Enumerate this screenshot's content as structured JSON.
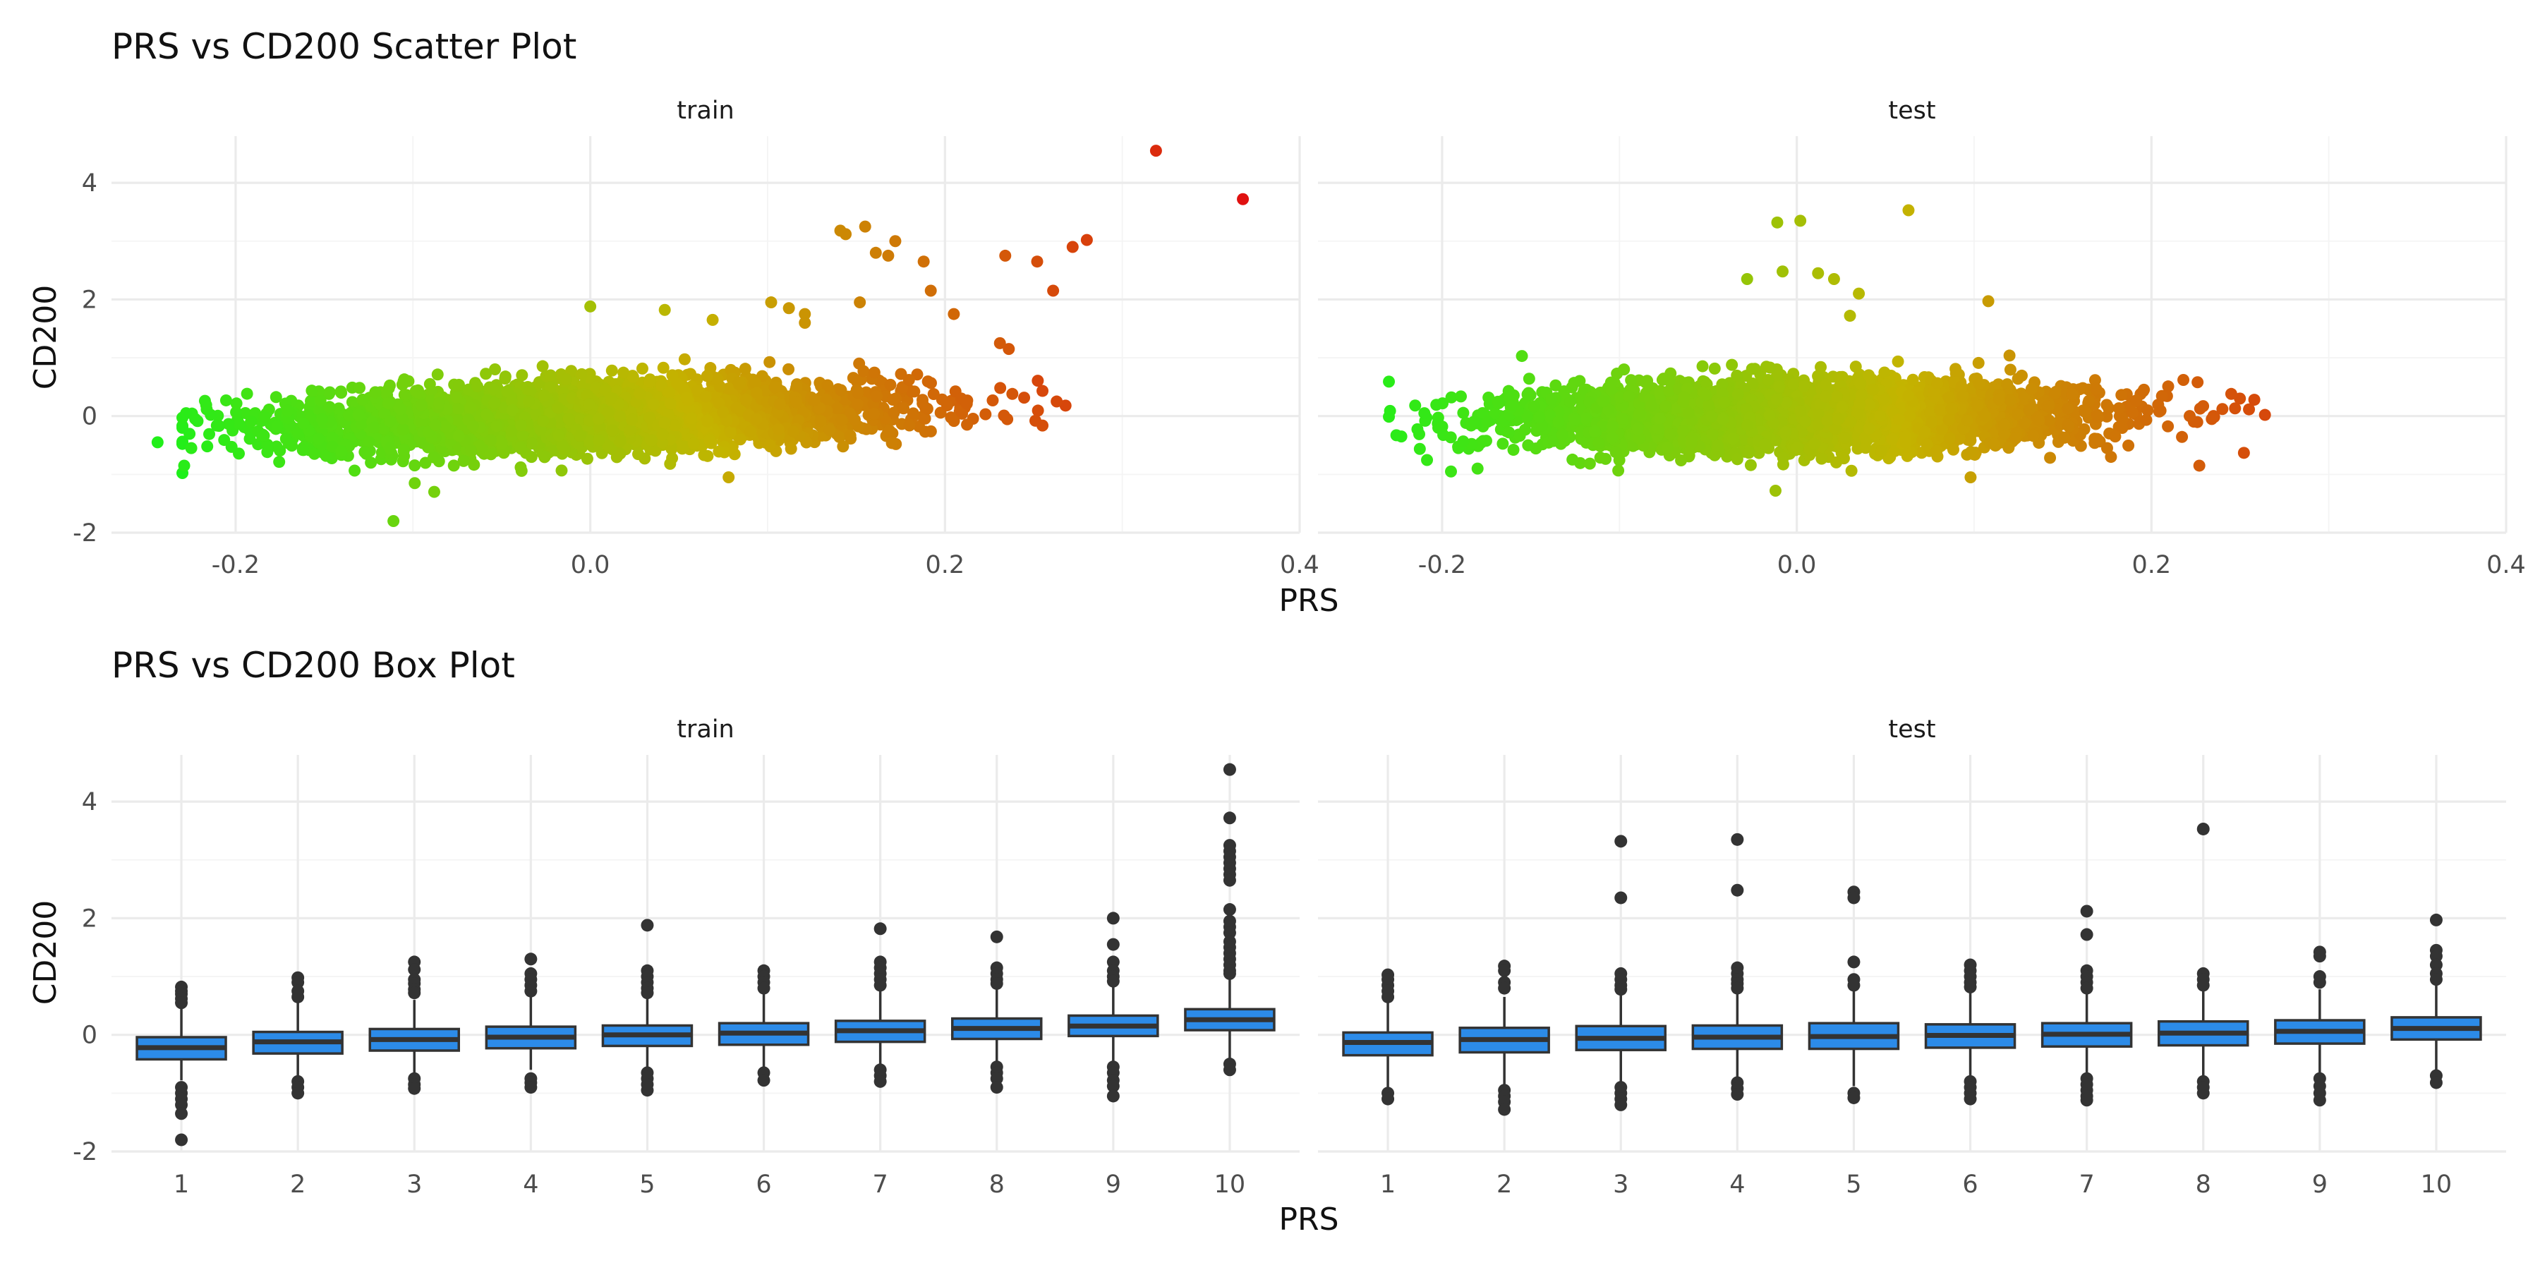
{
  "chart_data": [
    {
      "type": "scatter",
      "title": "PRS vs CD200 Scatter Plot",
      "xlabel": "PRS",
      "ylabel": "CD200",
      "facets": [
        "train",
        "test"
      ],
      "xlim": [
        -0.27,
        0.4
      ],
      "ylim": [
        -2,
        4.8
      ],
      "x_ticks": [
        "-0.2",
        "0.0",
        "0.2",
        "0.4"
      ],
      "y_ticks": [
        "-2",
        "0",
        "2",
        "4"
      ],
      "grid": true,
      "color_scale": {
        "low": "#1ef01a",
        "mid": "#c4b400",
        "high": "#e01010"
      },
      "series": [
        {
          "facet": "train",
          "cloud": {
            "n": 3800,
            "x_center": 0.0,
            "x_sd": 0.08,
            "slope": 2.4,
            "resid_sd": 0.28
          },
          "outliers": [
            {
              "x": 0.319,
              "y": 4.55
            },
            {
              "x": 0.368,
              "y": 3.72
            },
            {
              "x": 0.28,
              "y": 3.02
            },
            {
              "x": 0.272,
              "y": 2.9
            },
            {
              "x": 0.234,
              "y": 2.75
            },
            {
              "x": 0.252,
              "y": 2.65
            },
            {
              "x": 0.261,
              "y": 2.15
            },
            {
              "x": 0.155,
              "y": 3.25
            },
            {
              "x": 0.141,
              "y": 3.18
            },
            {
              "x": 0.144,
              "y": 3.12
            },
            {
              "x": 0.172,
              "y": 3.0
            },
            {
              "x": 0.161,
              "y": 2.8
            },
            {
              "x": 0.168,
              "y": 2.75
            },
            {
              "x": 0.188,
              "y": 2.65
            },
            {
              "x": 0.152,
              "y": 1.95
            },
            {
              "x": 0.192,
              "y": 2.15
            },
            {
              "x": 0.205,
              "y": 1.75
            },
            {
              "x": 0.0,
              "y": 1.88
            },
            {
              "x": 0.042,
              "y": 1.82
            },
            {
              "x": 0.102,
              "y": 1.95
            },
            {
              "x": 0.112,
              "y": 1.85
            },
            {
              "x": 0.121,
              "y": 1.75
            },
            {
              "x": 0.121,
              "y": 1.6
            },
            {
              "x": 0.069,
              "y": 1.65
            },
            {
              "x": -0.111,
              "y": -1.8
            },
            {
              "x": -0.244,
              "y": -0.45
            },
            {
              "x": -0.229,
              "y": -0.85
            },
            {
              "x": -0.225,
              "y": -0.55
            },
            {
              "x": -0.214,
              "y": 0.02
            },
            {
              "x": -0.088,
              "y": -1.3
            },
            {
              "x": -0.099,
              "y": -1.15
            },
            {
              "x": 0.078,
              "y": -1.05
            },
            {
              "x": 0.268,
              "y": 0.18
            },
            {
              "x": 0.263,
              "y": 0.25
            },
            {
              "x": 0.251,
              "y": -0.08
            },
            {
              "x": 0.238,
              "y": 0.38
            },
            {
              "x": 0.236,
              "y": 1.15
            },
            {
              "x": 0.231,
              "y": 1.25
            }
          ]
        },
        {
          "facet": "test",
          "cloud": {
            "n": 3500,
            "x_center": 0.0,
            "x_sd": 0.08,
            "slope": 1.2,
            "resid_sd": 0.28
          },
          "outliers": [
            {
              "x": -0.011,
              "y": 3.32
            },
            {
              "x": 0.002,
              "y": 3.35
            },
            {
              "x": 0.063,
              "y": 3.53
            },
            {
              "x": -0.008,
              "y": 2.48
            },
            {
              "x": -0.028,
              "y": 2.35
            },
            {
              "x": 0.012,
              "y": 2.45
            },
            {
              "x": 0.021,
              "y": 2.35
            },
            {
              "x": 0.035,
              "y": 2.1
            },
            {
              "x": 0.03,
              "y": 1.72
            },
            {
              "x": 0.108,
              "y": 1.97
            },
            {
              "x": -0.155,
              "y": 1.03
            },
            {
              "x": -0.223,
              "y": -0.35
            },
            {
              "x": -0.21,
              "y": 0.05
            },
            {
              "x": -0.195,
              "y": -0.95
            },
            {
              "x": -0.18,
              "y": -0.9
            },
            {
              "x": 0.264,
              "y": 0.02
            },
            {
              "x": 0.258,
              "y": 0.28
            },
            {
              "x": 0.245,
              "y": 0.38
            },
            {
              "x": 0.24,
              "y": 0.12
            },
            {
              "x": 0.234,
              "y": -0.05
            },
            {
              "x": 0.227,
              "y": -0.85
            },
            {
              "x": 0.226,
              "y": 0.58
            },
            {
              "x": 0.218,
              "y": 0.62
            },
            {
              "x": 0.098,
              "y": -1.05
            },
            {
              "x": -0.012,
              "y": -1.28
            },
            {
              "x": 0.175,
              "y": -0.55
            }
          ]
        }
      ]
    },
    {
      "type": "box",
      "title": "PRS vs CD200 Box Plot",
      "xlabel": "PRS",
      "ylabel": "CD200",
      "facets": [
        "train",
        "test"
      ],
      "categories": [
        "1",
        "2",
        "3",
        "4",
        "5",
        "6",
        "7",
        "8",
        "9",
        "10"
      ],
      "ylim": [
        -2,
        4.8
      ],
      "y_ticks": [
        "-2",
        "0",
        "2",
        "4"
      ],
      "grid": true,
      "box_color": "#2c8be8",
      "series": [
        {
          "facet": "train",
          "boxes": [
            {
              "q1": -0.42,
              "median": -0.22,
              "q3": -0.04,
              "low": -0.78,
              "high": 0.5,
              "out": [
                0.82,
                0.75,
                0.7,
                0.62,
                0.55,
                -0.9,
                -1.0,
                -1.1,
                -1.2,
                -1.35,
                -1.8
              ]
            },
            {
              "q1": -0.32,
              "median": -0.12,
              "q3": 0.05,
              "low": -0.7,
              "high": 0.55,
              "out": [
                0.98,
                0.9,
                0.75,
                0.65,
                -0.8,
                -0.9,
                -1.0
              ]
            },
            {
              "q1": -0.27,
              "median": -0.08,
              "q3": 0.1,
              "low": -0.65,
              "high": 0.6,
              "out": [
                1.25,
                1.12,
                0.95,
                0.88,
                0.78,
                0.72,
                -0.75,
                -0.85,
                -0.92
              ]
            },
            {
              "q1": -0.23,
              "median": -0.04,
              "q3": 0.14,
              "low": -0.6,
              "high": 0.65,
              "out": [
                1.3,
                1.05,
                0.95,
                0.85,
                0.75,
                -0.75,
                -0.82,
                -0.9
              ]
            },
            {
              "q1": -0.19,
              "median": 0.0,
              "q3": 0.16,
              "low": -0.58,
              "high": 0.65,
              "out": [
                1.88,
                1.1,
                1.0,
                0.9,
                0.8,
                0.72,
                -0.65,
                -0.75,
                -0.85,
                -0.95
              ]
            },
            {
              "q1": -0.17,
              "median": 0.03,
              "q3": 0.2,
              "low": -0.58,
              "high": 0.7,
              "out": [
                1.1,
                1.0,
                0.9,
                0.8,
                -0.65,
                -0.78
              ]
            },
            {
              "q1": -0.12,
              "median": 0.07,
              "q3": 0.24,
              "low": -0.55,
              "high": 0.75,
              "out": [
                1.82,
                1.25,
                1.15,
                1.05,
                0.95,
                0.85,
                -0.6,
                -0.7,
                -0.8
              ]
            },
            {
              "q1": -0.07,
              "median": 0.11,
              "q3": 0.28,
              "low": -0.5,
              "high": 0.8,
              "out": [
                1.68,
                1.15,
                1.05,
                0.95,
                0.88,
                -0.55,
                -0.65,
                -0.75,
                -0.9
              ]
            },
            {
              "q1": -0.02,
              "median": 0.15,
              "q3": 0.33,
              "low": -0.45,
              "high": 0.85,
              "out": [
                2.0,
                1.55,
                1.25,
                1.1,
                1.0,
                0.92,
                -0.55,
                -0.65,
                -0.78,
                -0.88,
                -1.05
              ]
            },
            {
              "q1": 0.08,
              "median": 0.26,
              "q3": 0.44,
              "low": -0.45,
              "high": 0.95,
              "out": [
                4.55,
                3.72,
                3.25,
                3.15,
                3.05,
                2.95,
                2.85,
                2.75,
                2.65,
                2.15,
                1.95,
                1.85,
                1.75,
                1.6,
                1.5,
                1.4,
                1.3,
                1.2,
                1.1,
                1.05,
                -0.5,
                -0.6
              ]
            }
          ]
        },
        {
          "facet": "test",
          "boxes": [
            {
              "q1": -0.35,
              "median": -0.13,
              "q3": 0.04,
              "low": -0.95,
              "high": 0.55,
              "out": [
                1.03,
                0.95,
                0.85,
                0.75,
                0.65,
                -1.0,
                -1.1
              ]
            },
            {
              "q1": -0.3,
              "median": -0.08,
              "q3": 0.12,
              "low": -0.85,
              "high": 0.65,
              "out": [
                1.18,
                1.1,
                0.9,
                0.8,
                -0.95,
                -1.05,
                -1.15,
                -1.28
              ]
            },
            {
              "q1": -0.26,
              "median": -0.06,
              "q3": 0.15,
              "low": -0.85,
              "high": 0.72,
              "out": [
                3.32,
                2.35,
                1.05,
                0.95,
                0.85,
                0.78,
                -0.9,
                -1.0,
                -1.1,
                -1.2
              ]
            },
            {
              "q1": -0.24,
              "median": -0.04,
              "q3": 0.16,
              "low": -0.78,
              "high": 0.72,
              "out": [
                3.35,
                2.48,
                1.15,
                1.05,
                0.95,
                0.88,
                0.8,
                -0.82,
                -0.92,
                -1.02
              ]
            },
            {
              "q1": -0.24,
              "median": -0.03,
              "q3": 0.2,
              "low": -0.88,
              "high": 0.75,
              "out": [
                2.45,
                2.35,
                1.25,
                0.95,
                0.85,
                -1.0,
                -1.08
              ]
            },
            {
              "q1": -0.22,
              "median": -0.01,
              "q3": 0.18,
              "low": -0.72,
              "high": 0.72,
              "out": [
                1.2,
                1.1,
                1.0,
                0.9,
                0.82,
                -0.8,
                -0.9,
                -1.0,
                -1.1
              ]
            },
            {
              "q1": -0.2,
              "median": 0.01,
              "q3": 0.2,
              "low": -0.65,
              "high": 0.72,
              "out": [
                2.12,
                1.72,
                1.1,
                1.0,
                0.9,
                0.8,
                -0.75,
                -0.85,
                -0.95,
                -1.05,
                -1.12
              ]
            },
            {
              "q1": -0.18,
              "median": 0.03,
              "q3": 0.23,
              "low": -0.72,
              "high": 0.75,
              "out": [
                3.53,
                1.05,
                0.95,
                0.85,
                -0.8,
                -0.9,
                -1.0
              ]
            },
            {
              "q1": -0.15,
              "median": 0.06,
              "q3": 0.25,
              "low": -0.7,
              "high": 0.78,
              "out": [
                1.42,
                1.35,
                1.0,
                0.9,
                -0.75,
                -0.88,
                -1.0,
                -1.12
              ]
            },
            {
              "q1": -0.08,
              "median": 0.11,
              "q3": 0.3,
              "low": -0.65,
              "high": 0.85,
              "out": [
                1.97,
                1.45,
                1.35,
                1.2,
                1.05,
                0.95,
                -0.7,
                -0.82
              ]
            }
          ]
        }
      ]
    }
  ]
}
